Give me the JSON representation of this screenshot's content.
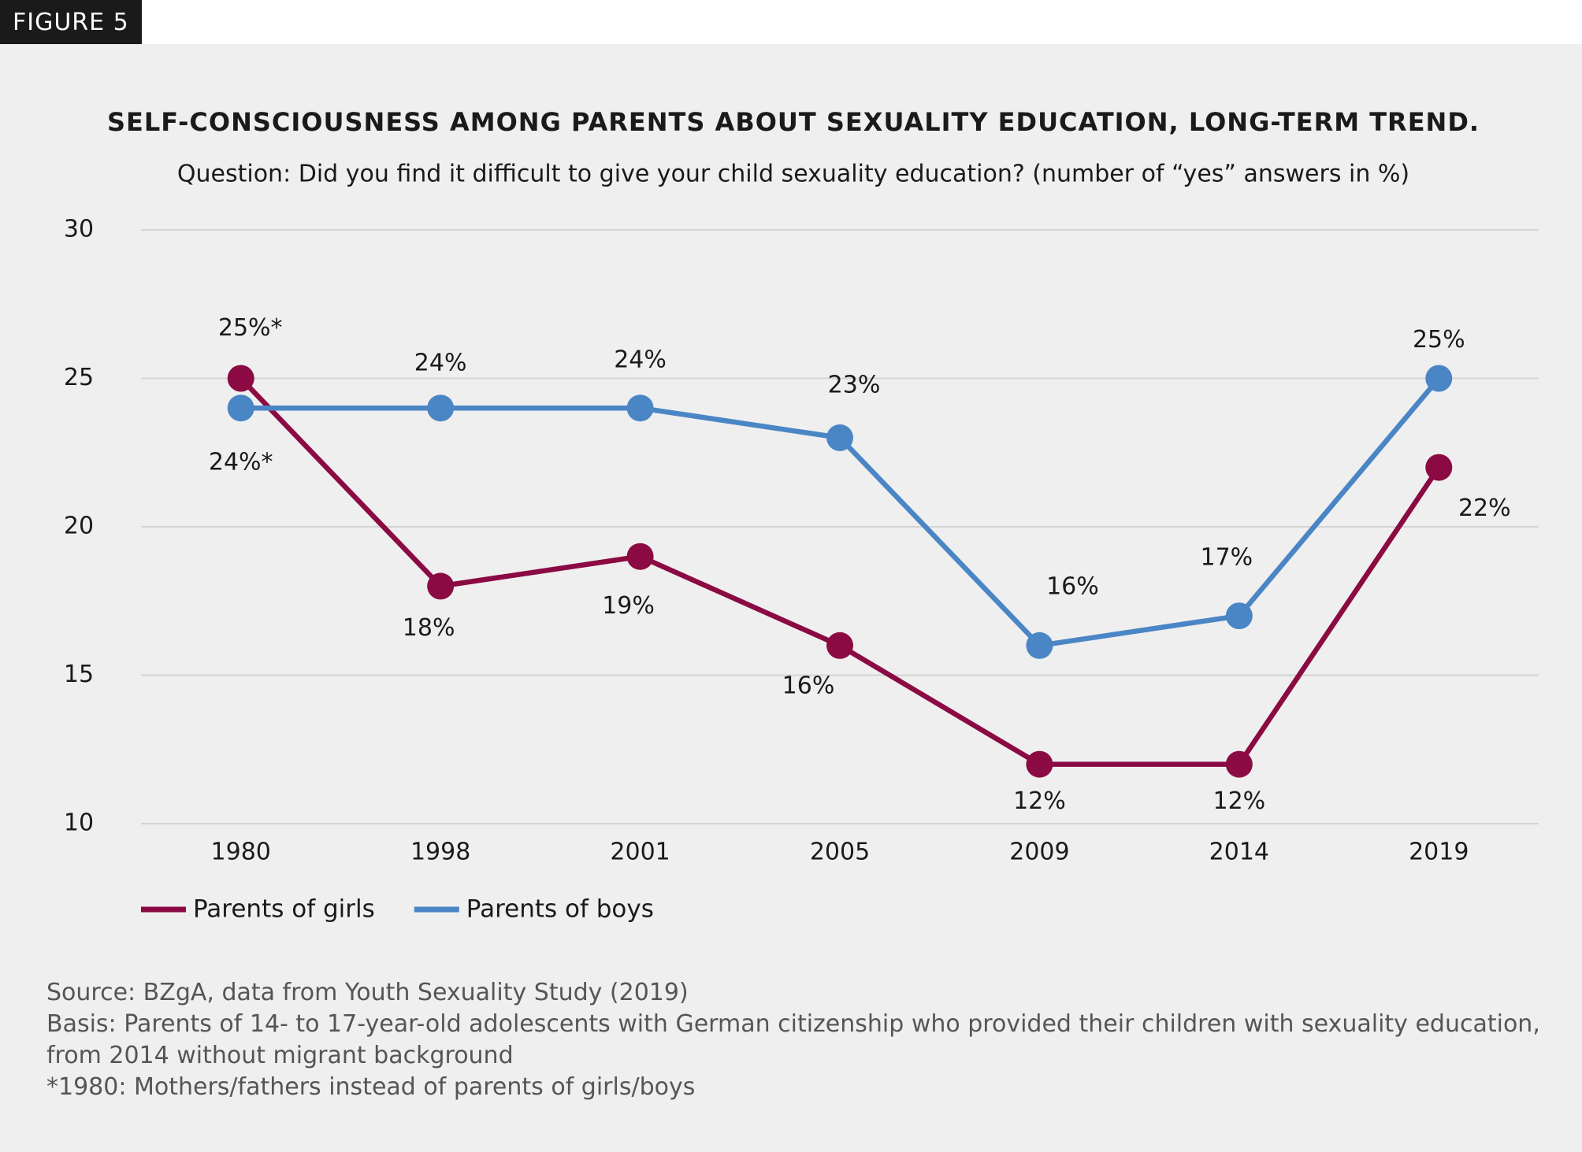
{
  "figure_label": "FIGURE 5",
  "chart_data": {
    "type": "line",
    "title": "SELF-CONSCIOUSNESS AMONG PARENTS ABOUT SEXUALITY EDUCATION, LONG-TERM TREND.",
    "subtitle": "Question: Did you find it difficult to give your child sexuality education? (number of “yes” answers in %)",
    "categories": [
      "1980",
      "1998",
      "2001",
      "2005",
      "2009",
      "2014",
      "2019"
    ],
    "series": [
      {
        "name": "Parents of girls",
        "color": "#8b0a43",
        "values": [
          25,
          18,
          19,
          16,
          12,
          12,
          22
        ],
        "value_labels": [
          "25%*",
          "18%",
          "19%",
          "16%",
          "12%",
          "12%",
          "22%"
        ]
      },
      {
        "name": "Parents of boys",
        "color": "#4a86c5",
        "values": [
          24,
          24,
          24,
          23,
          16,
          17,
          25
        ],
        "value_labels": [
          "24%*",
          "24%",
          "24%",
          "23%",
          "16%",
          "17%",
          "25%"
        ]
      }
    ],
    "ylim": [
      10,
      30
    ],
    "yticks": [
      10,
      15,
      20,
      25,
      30
    ],
    "grid": true,
    "notes": [
      "Source: BZgA, data from Youth Sexuality Study (2019)",
      "Basis: Parents of 14- to 17-year-old adolescents with German citizenship who provided their children with sexuality education, from 2014 without migrant background",
      "*1980: Mothers/fathers instead of parents of girls/boys"
    ]
  }
}
